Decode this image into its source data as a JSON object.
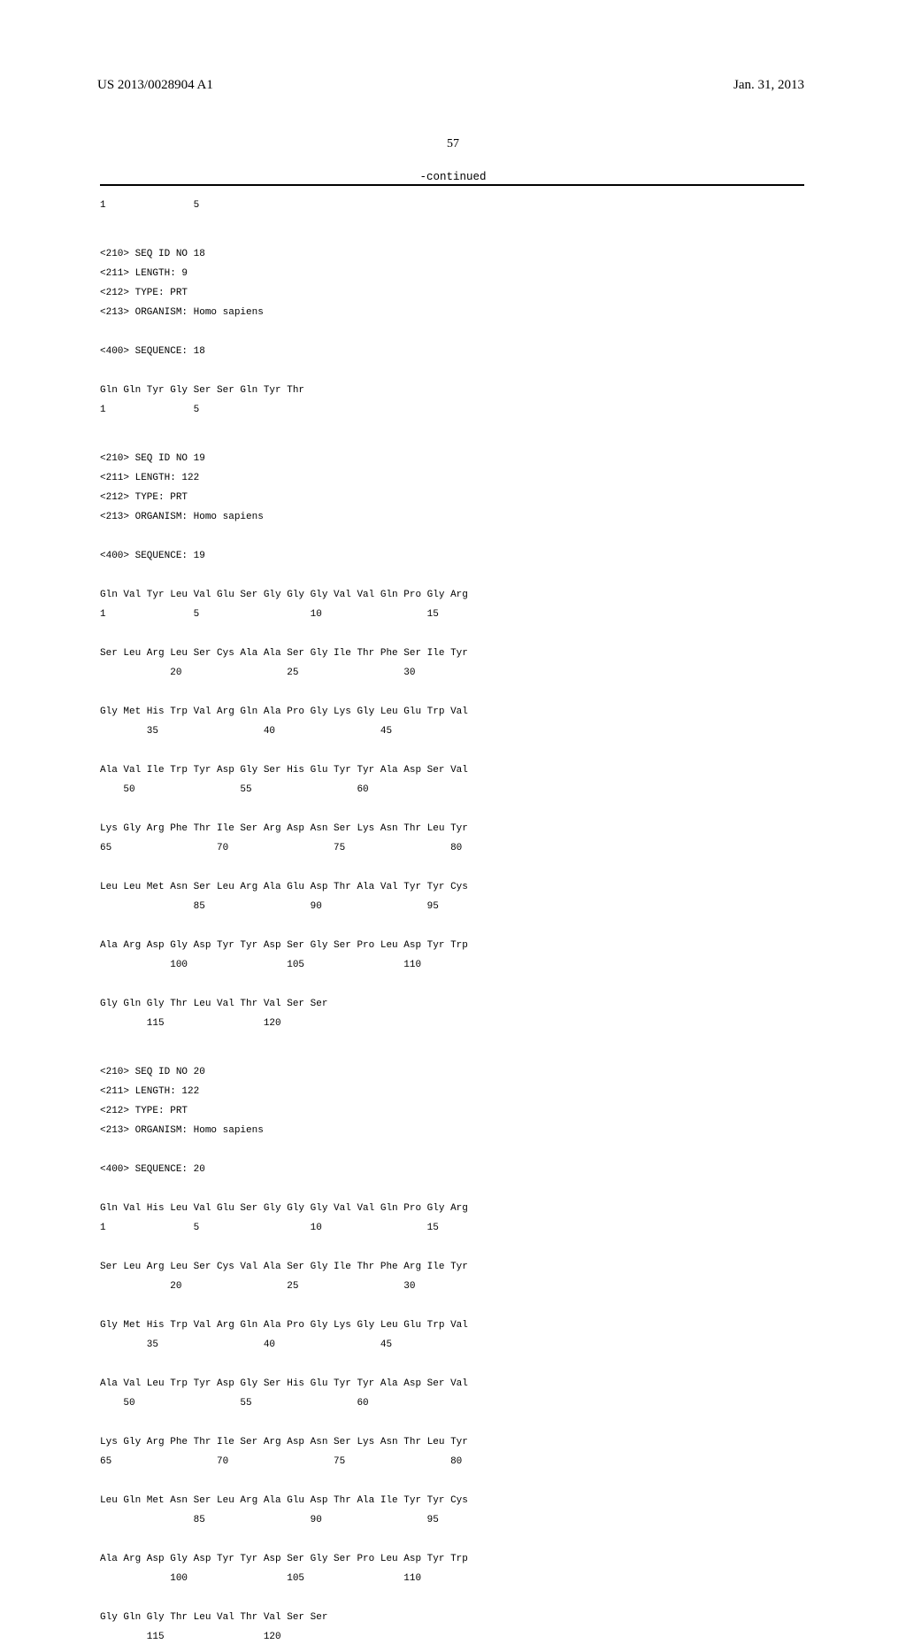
{
  "header": {
    "pub_number": "US 2013/0028904 A1",
    "pub_date": "Jan. 31, 2013"
  },
  "page_number": "57",
  "continued_label": "-continued",
  "seq0": {
    "pos_row": "1               5"
  },
  "seq18": {
    "h210": "<210> SEQ ID NO 18",
    "h211": "<211> LENGTH: 9",
    "h212": "<212> TYPE: PRT",
    "h213": "<213> ORGANISM: Homo sapiens",
    "h400": "<400> SEQUENCE: 18",
    "row1": "Gln Gln Tyr Gly Ser Ser Gln Tyr Thr",
    "pos1": "1               5"
  },
  "seq19": {
    "h210": "<210> SEQ ID NO 19",
    "h211": "<211> LENGTH: 122",
    "h212": "<212> TYPE: PRT",
    "h213": "<213> ORGANISM: Homo sapiens",
    "h400": "<400> SEQUENCE: 19",
    "row1": "Gln Val Tyr Leu Val Glu Ser Gly Gly Gly Val Val Gln Pro Gly Arg",
    "pos1": "1               5                   10                  15",
    "row2": "Ser Leu Arg Leu Ser Cys Ala Ala Ser Gly Ile Thr Phe Ser Ile Tyr",
    "pos2": "            20                  25                  30",
    "row3": "Gly Met His Trp Val Arg Gln Ala Pro Gly Lys Gly Leu Glu Trp Val",
    "pos3": "        35                  40                  45",
    "row4": "Ala Val Ile Trp Tyr Asp Gly Ser His Glu Tyr Tyr Ala Asp Ser Val",
    "pos4": "    50                  55                  60",
    "row5": "Lys Gly Arg Phe Thr Ile Ser Arg Asp Asn Ser Lys Asn Thr Leu Tyr",
    "pos5": "65                  70                  75                  80",
    "row6": "Leu Leu Met Asn Ser Leu Arg Ala Glu Asp Thr Ala Val Tyr Tyr Cys",
    "pos6": "                85                  90                  95",
    "row7": "Ala Arg Asp Gly Asp Tyr Tyr Asp Ser Gly Ser Pro Leu Asp Tyr Trp",
    "pos7": "            100                 105                 110",
    "row8": "Gly Gln Gly Thr Leu Val Thr Val Ser Ser",
    "pos8": "        115                 120"
  },
  "seq20": {
    "h210": "<210> SEQ ID NO 20",
    "h211": "<211> LENGTH: 122",
    "h212": "<212> TYPE: PRT",
    "h213": "<213> ORGANISM: Homo sapiens",
    "h400": "<400> SEQUENCE: 20",
    "row1": "Gln Val His Leu Val Glu Ser Gly Gly Gly Val Val Gln Pro Gly Arg",
    "pos1": "1               5                   10                  15",
    "row2": "Ser Leu Arg Leu Ser Cys Val Ala Ser Gly Ile Thr Phe Arg Ile Tyr",
    "pos2": "            20                  25                  30",
    "row3": "Gly Met His Trp Val Arg Gln Ala Pro Gly Lys Gly Leu Glu Trp Val",
    "pos3": "        35                  40                  45",
    "row4": "Ala Val Leu Trp Tyr Asp Gly Ser His Glu Tyr Tyr Ala Asp Ser Val",
    "pos4": "    50                  55                  60",
    "row5": "Lys Gly Arg Phe Thr Ile Ser Arg Asp Asn Ser Lys Asn Thr Leu Tyr",
    "pos5": "65                  70                  75                  80",
    "row6": "Leu Gln Met Asn Ser Leu Arg Ala Glu Asp Thr Ala Ile Tyr Tyr Cys",
    "pos6": "                85                  90                  95",
    "row7": "Ala Arg Asp Gly Asp Tyr Tyr Asp Ser Gly Ser Pro Leu Asp Tyr Trp",
    "pos7": "            100                 105                 110",
    "row8": "Gly Gln Gly Thr Leu Val Thr Val Ser Ser",
    "pos8": "        115                 120"
  }
}
